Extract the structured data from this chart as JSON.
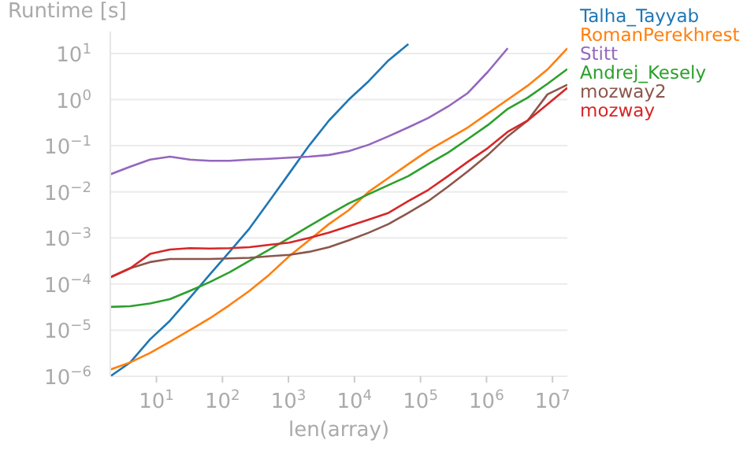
{
  "chart_data": {
    "type": "line",
    "xlabel": "len(array)",
    "ylabel": "Runtime [s]",
    "log": "xy",
    "grid": "y",
    "legend": "top right",
    "marker": "none",
    "line_style": "solid",
    "x": [
      2,
      4,
      8,
      16,
      32,
      64,
      128,
      256,
      512,
      1024,
      2048,
      4096,
      8192,
      16384,
      32768,
      65536,
      131072,
      262144,
      524288,
      1048576,
      2097152,
      4194304,
      8388608,
      16777216
    ],
    "xlim": [
      2,
      16777216
    ],
    "ylim": [
      1e-06,
      30
    ],
    "xticks": [
      {
        "value": 10,
        "label": "10$^{1}$"
      },
      {
        "value": 100,
        "label": "10$^{2}$"
      },
      {
        "value": 1000,
        "label": "10$^{3}$"
      },
      {
        "value": 10000,
        "label": "10$^{4}$"
      },
      {
        "value": 100000,
        "label": "10$^{5}$"
      },
      {
        "value": 1000000,
        "label": "10$^{6}$"
      },
      {
        "value": 10000000,
        "label": "10$^{7}$"
      }
    ],
    "yticks": [
      {
        "value": 1e-06,
        "label": "10$^{−6}$"
      },
      {
        "value": 1e-05,
        "label": "10$^{−5}$"
      },
      {
        "value": 0.0001,
        "label": "10$^{−4}$"
      },
      {
        "value": 0.001,
        "label": "10$^{−3}$"
      },
      {
        "value": 0.01,
        "label": "10$^{−2}$"
      },
      {
        "value": 0.1,
        "label": "10$^{−1}$"
      },
      {
        "value": 1,
        "label": "10$^{0}$"
      },
      {
        "value": 10,
        "label": "10$^{1}$"
      }
    ],
    "series": [
      {
        "name": "Talha_Tayyab",
        "color": "#1f77b4",
        "values": [
          1e-06,
          2e-06,
          6.3e-06,
          1.6e-05,
          5e-05,
          0.00016,
          0.0005,
          0.0016,
          0.0063,
          0.025,
          0.1,
          0.35,
          1,
          2.5,
          7.1,
          16,
          null,
          null,
          null,
          null,
          null,
          null,
          null,
          null
        ]
      },
      {
        "name": "RomanPerekhrest",
        "color": "#ff7f0e",
        "values": [
          1.4e-06,
          2e-06,
          3.2e-06,
          5.6e-06,
          1e-05,
          1.8e-05,
          3.5e-05,
          7.1e-05,
          0.00016,
          0.0004,
          0.00089,
          0.002,
          0.004,
          0.01,
          0.02,
          0.04,
          0.079,
          0.14,
          0.25,
          0.5,
          1,
          2,
          4.5,
          13
        ]
      },
      {
        "name": "Stitt",
        "color": "#9467bd",
        "values": [
          0.024,
          0.035,
          0.05,
          0.058,
          0.05,
          0.047,
          0.047,
          0.05,
          0.052,
          0.055,
          0.058,
          0.063,
          0.076,
          0.105,
          0.16,
          0.25,
          0.4,
          0.71,
          1.4,
          4,
          13,
          null,
          null,
          null
        ]
      },
      {
        "name": "Andrej_Kesely",
        "color": "#2ca02c",
        "values": [
          3.2e-05,
          3.3e-05,
          3.8e-05,
          4.7e-05,
          7.1e-05,
          0.00011,
          0.00018,
          0.00032,
          0.00056,
          0.001,
          0.0018,
          0.0032,
          0.0056,
          0.0089,
          0.014,
          0.022,
          0.04,
          0.071,
          0.14,
          0.28,
          0.63,
          1.1,
          2.2,
          4.6
        ]
      },
      {
        "name": "mozway2",
        "color": "#8c564b",
        "values": [
          0.00014,
          0.00022,
          0.0003,
          0.00035,
          0.00035,
          0.00035,
          0.00036,
          0.00037,
          0.0004,
          0.00043,
          0.0005,
          0.00063,
          0.00089,
          0.0013,
          0.002,
          0.0035,
          0.0063,
          0.013,
          0.028,
          0.063,
          0.16,
          0.35,
          1.3,
          2.1
        ]
      },
      {
        "name": "mozway",
        "color": "#d62728",
        "values": [
          0.00014,
          0.00022,
          0.00045,
          0.00056,
          0.0006,
          0.00059,
          0.0006,
          0.00063,
          0.00071,
          0.00079,
          0.001,
          0.0013,
          0.0018,
          0.0025,
          0.0035,
          0.0063,
          0.011,
          0.022,
          0.045,
          0.089,
          0.2,
          0.35,
          0.79,
          1.8
        ]
      }
    ]
  }
}
